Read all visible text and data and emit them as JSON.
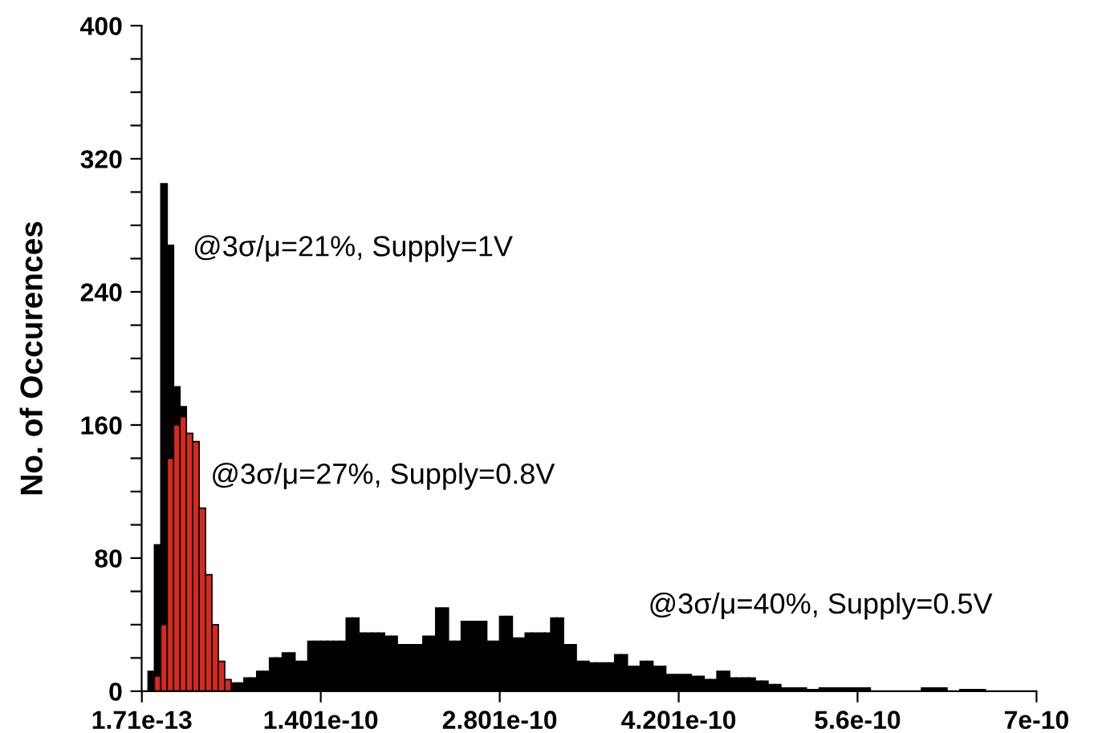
{
  "chart_data": {
    "type": "histogram",
    "ylabel": "No. of Occurences",
    "bins": [
      5e-12,
      1e-11,
      1.5e-11,
      2e-11,
      2.5e-11,
      3e-11,
      3.5e-11,
      4e-11,
      4.5e-11,
      5e-11,
      5.5e-11,
      6e-11,
      6.5e-11,
      7e-11,
      7.5e-11,
      8e-11,
      8.5e-11,
      9e-11,
      9.5e-11,
      1e-10,
      1.05e-10,
      1.1e-10,
      1.15e-10,
      1.2e-10,
      1.25e-10,
      1.3e-10,
      1.35e-10,
      1.4e-10,
      1.45e-10,
      1.5e-10,
      1.55e-10,
      1.6e-10,
      1.65e-10,
      1.7e-10,
      1.75e-10,
      1.8e-10,
      1.85e-10,
      1.9e-10,
      1.95e-10,
      2e-10,
      2.05e-10,
      2.1e-10,
      2.15e-10,
      2.2e-10,
      2.25e-10,
      2.3e-10,
      2.35e-10,
      2.4e-10,
      2.45e-10,
      2.5e-10,
      2.55e-10,
      2.6e-10,
      2.65e-10,
      2.7e-10,
      2.75e-10,
      2.8e-10,
      2.85e-10,
      2.9e-10,
      2.95e-10,
      3e-10,
      3.05e-10,
      3.1e-10,
      3.15e-10,
      3.2e-10,
      3.25e-10,
      3.3e-10,
      3.35e-10,
      3.4e-10,
      3.45e-10,
      3.5e-10,
      3.55e-10,
      3.6e-10,
      3.65e-10,
      3.7e-10,
      3.75e-10,
      3.8e-10,
      3.85e-10,
      3.9e-10,
      3.95e-10,
      4e-10,
      4.05e-10,
      4.1e-10,
      4.15e-10,
      4.2e-10,
      4.25e-10,
      4.3e-10,
      4.35e-10,
      4.4e-10,
      4.45e-10,
      4.5e-10,
      4.55e-10,
      4.6e-10,
      4.65e-10,
      4.7e-10,
      4.75e-10,
      4.8e-10,
      4.85e-10,
      4.9e-10,
      4.95e-10,
      5e-10,
      5.05e-10,
      5.1e-10,
      5.15e-10,
      5.2e-10,
      5.25e-10,
      5.3e-10,
      5.35e-10,
      5.4e-10,
      5.45e-10,
      5.5e-10,
      5.55e-10,
      5.6e-10,
      5.65e-10,
      5.7e-10,
      5.75e-10,
      5.8e-10,
      5.85e-10,
      5.9e-10,
      5.95e-10,
      6e-10,
      6.05e-10,
      6.1e-10,
      6.15e-10,
      6.2e-10,
      6.25e-10,
      6.3e-10,
      6.35e-10,
      6.4e-10,
      6.45e-10,
      6.5e-10,
      6.55e-10,
      6.6e-10
    ],
    "series": [
      {
        "color": "#000000",
        "values": [
          12,
          88,
          305,
          268,
          183,
          171,
          null,
          null,
          null,
          null,
          null,
          null,
          null,
          null,
          null,
          null,
          null,
          null,
          null,
          null,
          null,
          null,
          null,
          null,
          null,
          null,
          null,
          null,
          null,
          null,
          null,
          null,
          null,
          null,
          null,
          null,
          null,
          null,
          null,
          null,
          null,
          null,
          null,
          null,
          null,
          null,
          null,
          null,
          null,
          null,
          null,
          null,
          null,
          null,
          null,
          null,
          null,
          null,
          null,
          null,
          null,
          null,
          null,
          null,
          null,
          null,
          null,
          null,
          null,
          null,
          null,
          null,
          null,
          null,
          null,
          null,
          null,
          null,
          null,
          null,
          null,
          null,
          null,
          null,
          null,
          null,
          null,
          null,
          null,
          null,
          null,
          null,
          null,
          null,
          null,
          null,
          null,
          null,
          null,
          null,
          null,
          null,
          null,
          null,
          null,
          null,
          null,
          null,
          null,
          null,
          null,
          null,
          null,
          null,
          null,
          null,
          null,
          null,
          null,
          null,
          null,
          null,
          null,
          null,
          null,
          null,
          null,
          null,
          null,
          null,
          null
        ]
      },
      {
        "color": "#000000",
        "values": [
          null,
          null,
          null,
          null,
          null,
          null,
          null,
          null,
          null,
          null,
          null,
          null,
          null,
          5,
          5,
          8,
          8,
          12,
          12,
          20,
          20,
          23,
          23,
          18,
          18,
          30,
          30,
          30,
          30,
          30,
          30,
          44,
          44,
          35,
          35,
          35,
          35,
          33,
          33,
          28,
          28,
          28,
          28,
          33,
          33,
          50,
          50,
          30,
          30,
          42,
          42,
          42,
          42,
          30,
          30,
          45,
          45,
          32,
          32,
          35,
          35,
          35,
          35,
          44,
          44,
          28,
          28,
          18,
          18,
          17,
          17,
          17,
          17,
          22,
          22,
          15,
          15,
          18,
          18,
          15,
          15,
          10,
          10,
          10,
          10,
          9,
          9,
          7,
          7,
          12,
          12,
          8,
          8,
          8,
          8,
          6,
          6,
          4,
          4,
          2,
          2,
          2,
          2,
          1,
          1,
          2,
          2,
          2,
          2,
          2,
          2,
          2,
          2,
          null,
          null,
          null,
          null,
          null,
          null,
          null,
          null,
          2,
          2,
          2,
          2,
          null,
          null,
          1,
          1,
          1,
          1
        ]
      },
      {
        "color": "#d62a1e",
        "values": [
          null,
          9,
          40,
          140,
          160,
          165,
          155,
          150,
          110,
          70,
          40,
          18,
          7,
          null,
          null,
          null,
          null,
          null,
          null,
          null,
          null,
          null,
          null,
          null,
          null,
          null,
          null,
          null,
          null,
          null,
          null,
          null,
          null,
          null,
          null,
          null,
          null,
          null,
          null,
          null,
          null,
          null,
          null,
          null,
          null,
          null,
          null,
          null,
          null,
          null,
          null,
          null,
          null,
          null,
          null,
          null,
          null,
          null,
          null,
          null,
          null,
          null,
          null,
          null,
          null,
          null,
          null,
          null,
          null,
          null,
          null,
          null,
          null,
          null,
          null,
          null,
          null,
          null,
          null,
          null,
          null,
          null,
          null,
          null,
          null,
          null,
          null,
          null,
          null,
          null,
          null,
          null,
          null,
          null,
          null,
          null,
          null,
          null,
          null,
          null,
          null,
          null,
          null,
          null,
          null,
          null,
          null,
          null,
          null,
          null,
          null,
          null,
          null,
          null,
          null,
          null,
          null,
          null,
          null,
          null,
          null,
          null,
          null,
          null,
          null,
          null,
          null,
          null,
          null,
          null,
          null
        ]
      }
    ],
    "xlim": [
      0,
      7e-10
    ],
    "xticks": [
      {
        "value": 1.71e-13,
        "label": "1.71e-13"
      },
      {
        "value": 1.401e-10,
        "label": "1.401e-10"
      },
      {
        "value": 2.801e-10,
        "label": "2.801e-10"
      },
      {
        "value": 4.201e-10,
        "label": "4.201e-10"
      },
      {
        "value": 5.6e-10,
        "label": "5.6e-10"
      },
      {
        "value": 7e-10,
        "label": "7e-10"
      }
    ],
    "ylim": [
      0,
      400
    ],
    "yticks": [
      0,
      {
        "value": 20,
        "label": null
      },
      {
        "value": 40,
        "label": null
      },
      {
        "value": 60,
        "label": null
      },
      80,
      {
        "value": 100,
        "label": null
      },
      {
        "value": 120,
        "label": null
      },
      {
        "value": 140,
        "label": null
      },
      160,
      {
        "value": 180,
        "label": null
      },
      {
        "value": 200,
        "label": null
      },
      {
        "value": 220,
        "label": null
      },
      240,
      {
        "value": 260,
        "label": null
      },
      {
        "value": 280,
        "label": null
      },
      {
        "value": 300,
        "label": null
      },
      320,
      {
        "value": 340,
        "label": null
      },
      {
        "value": 360,
        "label": null
      },
      {
        "value": 380,
        "label": null
      },
      400
    ],
    "grid": false,
    "annotations": [
      "@3σ/μ=21%, Supply=1V",
      "@3σ/μ=27%, Supply=0.8V",
      "@3σ/μ=40%, Supply=0.5V"
    ]
  }
}
